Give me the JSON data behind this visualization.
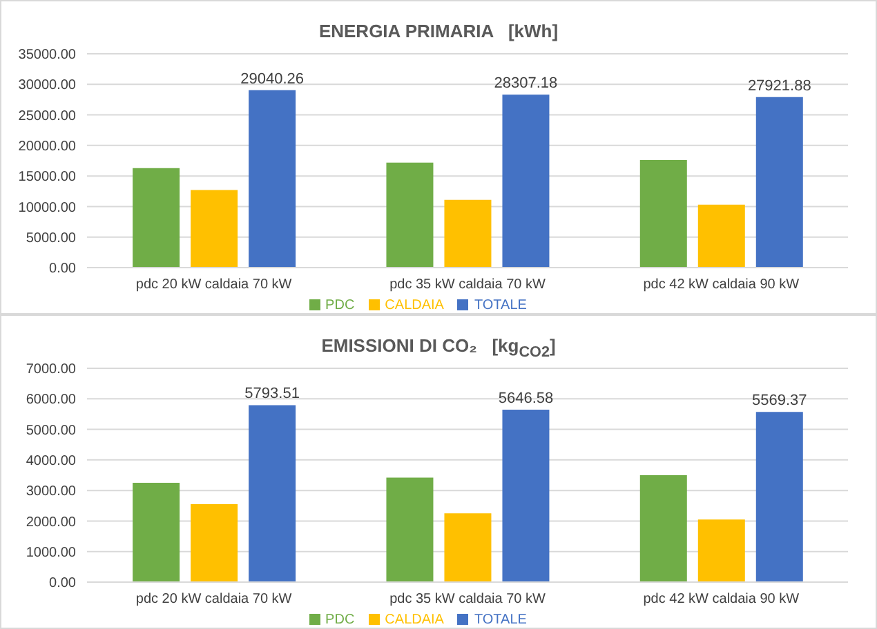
{
  "chart_data": [
    {
      "type": "bar",
      "title": "ENERGIA PRIMARIA   [kWh]",
      "categories": [
        "pdc 20 kW caldaia 70 kW",
        "pdc 35 kW caldaia 70 kW",
        "pdc 42 kW caldaia 90 kW"
      ],
      "series": [
        {
          "name": "PDC",
          "color": "#70ad47",
          "values": [
            16300,
            17200,
            17600
          ]
        },
        {
          "name": "CALDAIA",
          "color": "#ffc000",
          "values": [
            12700,
            11100,
            10300
          ]
        },
        {
          "name": "TOTALE",
          "color": "#4472c4",
          "values": [
            29040.26,
            28307.18,
            27921.88
          ],
          "value_labels": [
            "29040.26",
            "28307.18",
            "27921.88"
          ]
        }
      ],
      "ylim": [
        0,
        35000
      ],
      "yticks": [
        {
          "value": 0,
          "label": "0.00"
        },
        {
          "value": 5000,
          "label": "5000.00"
        },
        {
          "value": 10000,
          "label": "10000.00"
        },
        {
          "value": 15000,
          "label": "15000.00"
        },
        {
          "value": 20000,
          "label": "20000.00"
        },
        {
          "value": 25000,
          "label": "25000.00"
        },
        {
          "value": 30000,
          "label": "30000.00"
        },
        {
          "value": 35000,
          "label": "35000.00"
        }
      ],
      "grid": "y",
      "legend": "bottom"
    },
    {
      "type": "bar",
      "title": "EMISSIONI DI CO₂   [kg$_{CO2}$]",
      "categories": [
        "pdc 20 kW caldaia 70 kW",
        "pdc 35 kW caldaia 70 kW",
        "pdc 42 kW caldaia 90 kW"
      ],
      "series": [
        {
          "name": "PDC",
          "color": "#70ad47",
          "values": [
            3250,
            3420,
            3500
          ]
        },
        {
          "name": "CALDAIA",
          "color": "#ffc000",
          "values": [
            2550,
            2250,
            2050
          ]
        },
        {
          "name": "TOTALE",
          "color": "#4472c4",
          "values": [
            5793.51,
            5646.58,
            5569.37
          ],
          "value_labels": [
            "5793.51",
            "5646.58",
            "5569.37"
          ]
        }
      ],
      "ylim": [
        0,
        7000
      ],
      "yticks": [
        {
          "value": 0,
          "label": "0.00"
        },
        {
          "value": 1000,
          "label": "1000.00"
        },
        {
          "value": 2000,
          "label": "2000.00"
        },
        {
          "value": 3000,
          "label": "3000.00"
        },
        {
          "value": 4000,
          "label": "4000.00"
        },
        {
          "value": 5000,
          "label": "5000.00"
        },
        {
          "value": 6000,
          "label": "6000.00"
        },
        {
          "value": 7000,
          "label": "7000.00"
        }
      ],
      "grid": "y",
      "legend": "bottom"
    }
  ]
}
